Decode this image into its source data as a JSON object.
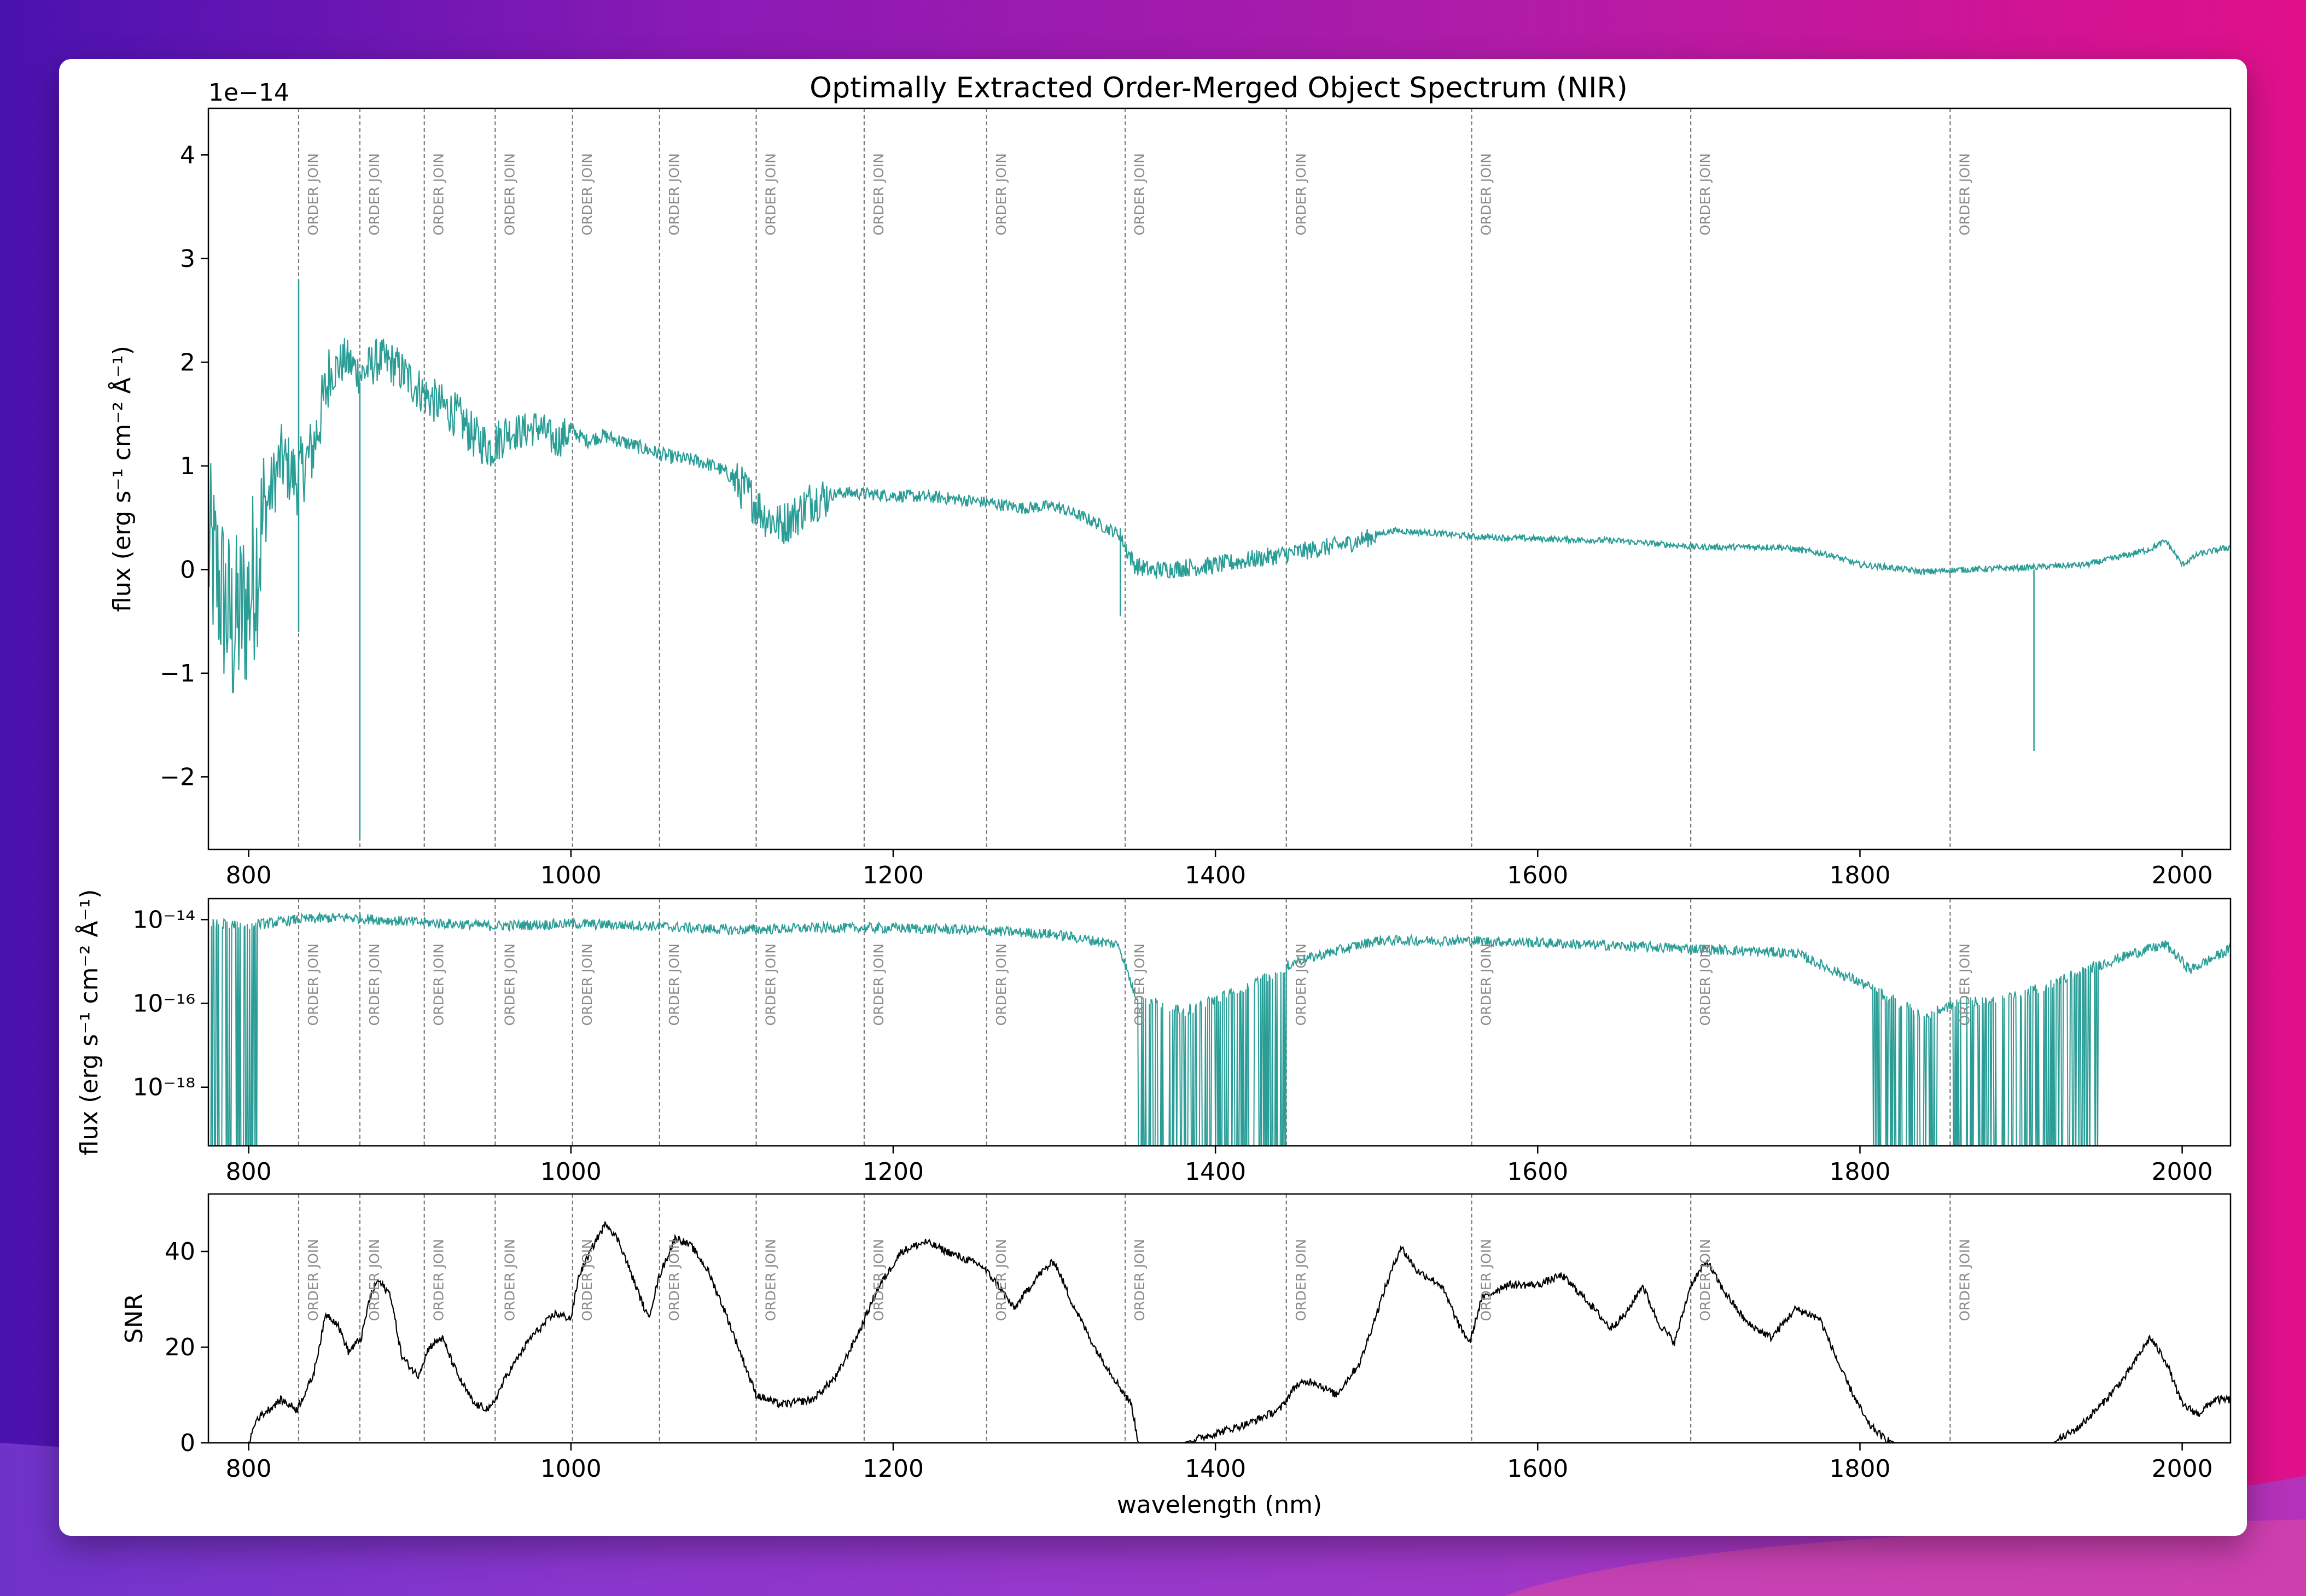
{
  "colors": {
    "spectrum": "#2a9d96",
    "snr": "#000000",
    "order_join": "#7a7a7a",
    "card": "#ffffff"
  },
  "chart_data": [
    {
      "id": "flux_linear",
      "type": "line",
      "title": "Optimally Extracted Order-Merged Object Spectrum (NIR)",
      "ylabel": "flux (erg s⁻¹ cm⁻² Å⁻¹)",
      "offset_text": "1e−14",
      "xlim": [
        775,
        2030
      ],
      "ylim": [
        -2.7,
        4.45
      ],
      "x_ticks": [
        800,
        1000,
        1200,
        1400,
        1600,
        1800,
        2000
      ],
      "y_ticks": [
        -2,
        -1,
        0,
        1,
        2,
        3,
        4
      ],
      "y_tick_labels": [
        "−2",
        "−1",
        "0",
        "1",
        "2",
        "3",
        "4"
      ],
      "series": [
        {
          "points": [
            [
              775,
              0.3
            ],
            [
              790,
              -0.5
            ],
            [
              800,
              -0.2
            ],
            [
              810,
              0.6
            ],
            [
              820,
              1.1
            ],
            [
              830,
              0.9
            ],
            [
              840,
              1.2
            ],
            [
              850,
              1.9
            ],
            [
              860,
              2.05
            ],
            [
              870,
              1.9
            ],
            [
              880,
              2.05
            ],
            [
              890,
              2.0
            ],
            [
              900,
              1.85
            ],
            [
              910,
              1.7
            ],
            [
              920,
              1.6
            ],
            [
              930,
              1.5
            ],
            [
              940,
              1.3
            ],
            [
              950,
              1.2
            ],
            [
              960,
              1.35
            ],
            [
              970,
              1.35
            ],
            [
              980,
              1.4
            ],
            [
              990,
              1.25
            ],
            [
              1000,
              1.35
            ],
            [
              1010,
              1.25
            ],
            [
              1020,
              1.3
            ],
            [
              1040,
              1.2
            ],
            [
              1060,
              1.1
            ],
            [
              1080,
              1.05
            ],
            [
              1090,
              1.0
            ],
            [
              1100,
              0.9
            ],
            [
              1110,
              0.75
            ],
            [
              1120,
              0.55
            ],
            [
              1130,
              0.45
            ],
            [
              1140,
              0.55
            ],
            [
              1150,
              0.7
            ],
            [
              1170,
              0.75
            ],
            [
              1200,
              0.72
            ],
            [
              1230,
              0.7
            ],
            [
              1260,
              0.65
            ],
            [
              1280,
              0.6
            ],
            [
              1300,
              0.62
            ],
            [
              1320,
              0.5
            ],
            [
              1340,
              0.35
            ],
            [
              1350,
              0.05
            ],
            [
              1360,
              0.0
            ],
            [
              1400,
              0.05
            ],
            [
              1440,
              0.15
            ],
            [
              1480,
              0.25
            ],
            [
              1510,
              0.38
            ],
            [
              1540,
              0.35
            ],
            [
              1560,
              0.32
            ],
            [
              1600,
              0.3
            ],
            [
              1650,
              0.28
            ],
            [
              1700,
              0.22
            ],
            [
              1750,
              0.22
            ],
            [
              1780,
              0.15
            ],
            [
              1800,
              0.05
            ],
            [
              1820,
              0.02
            ],
            [
              1840,
              -0.02
            ],
            [
              1860,
              0.0
            ],
            [
              1900,
              0.02
            ],
            [
              1940,
              0.05
            ],
            [
              1960,
              0.12
            ],
            [
              1980,
              0.2
            ],
            [
              1990,
              0.28
            ],
            [
              2000,
              0.05
            ],
            [
              2010,
              0.15
            ],
            [
              2030,
              0.22
            ]
          ],
          "features": [
            {
              "x": 831,
              "y_min": -0.6,
              "y_max": 2.8
            },
            {
              "x": 869,
              "y_min": -2.6,
              "y_max": 1.8
            },
            {
              "x": 1908,
              "y_min": -1.75,
              "y_max": 0.0
            },
            {
              "x": 1341,
              "y_min": -0.45,
              "y_max": 0.4
            }
          ]
        }
      ]
    },
    {
      "id": "flux_log",
      "type": "line",
      "ylabel": "flux (erg s⁻¹ cm⁻² Å⁻¹)",
      "y_scale": "log",
      "xlim": [
        775,
        2030
      ],
      "ylim_exp": [
        -19.4,
        -13.5
      ],
      "x_ticks": [
        800,
        1000,
        1200,
        1400,
        1600,
        1800,
        2000
      ],
      "y_ticks": [
        -14,
        -16,
        -18
      ],
      "y_tick_labels": [
        "10⁻¹⁴",
        "10⁻¹⁶",
        "10⁻¹⁸"
      ],
      "series": [
        {
          "points_log10": [
            [
              810,
              -14.1
            ],
            [
              830,
              -14.0
            ],
            [
              860,
              -13.95
            ],
            [
              900,
              -14.05
            ],
            [
              950,
              -14.15
            ],
            [
              1000,
              -14.1
            ],
            [
              1050,
              -14.15
            ],
            [
              1100,
              -14.25
            ],
            [
              1150,
              -14.2
            ],
            [
              1200,
              -14.2
            ],
            [
              1250,
              -14.25
            ],
            [
              1300,
              -14.35
            ],
            [
              1340,
              -14.6
            ],
            [
              1350,
              -15.8
            ],
            [
              1380,
              -16.2
            ],
            [
              1420,
              -15.6
            ],
            [
              1450,
              -15.0
            ],
            [
              1500,
              -14.5
            ],
            [
              1550,
              -14.5
            ],
            [
              1600,
              -14.55
            ],
            [
              1700,
              -14.7
            ],
            [
              1760,
              -14.8
            ],
            [
              1800,
              -15.5
            ],
            [
              1840,
              -16.3
            ],
            [
              1860,
              -16.0
            ],
            [
              1900,
              -15.8
            ],
            [
              1940,
              -15.2
            ],
            [
              1970,
              -14.8
            ],
            [
              1990,
              -14.6
            ],
            [
              2005,
              -15.2
            ],
            [
              2030,
              -14.7
            ]
          ],
          "dropout_ranges": [
            [
              775,
              805
            ],
            [
              1352,
              1445
            ],
            [
              1808,
              1848
            ],
            [
              1858,
              1948
            ]
          ]
        }
      ]
    },
    {
      "id": "snr",
      "type": "line",
      "ylabel": "SNR",
      "xlabel": "wavelength (nm)",
      "xlim": [
        775,
        2030
      ],
      "ylim": [
        0,
        52
      ],
      "x_ticks": [
        800,
        1000,
        1200,
        1400,
        1600,
        1800,
        2000
      ],
      "y_ticks": [
        0,
        20,
        40
      ],
      "y_tick_labels": [
        "0",
        "20",
        "40"
      ],
      "series": [
        {
          "points": [
            [
              800,
              0
            ],
            [
              805,
              5
            ],
            [
              820,
              9
            ],
            [
              830,
              7
            ],
            [
              840,
              14
            ],
            [
              848,
              27
            ],
            [
              855,
              25
            ],
            [
              862,
              19
            ],
            [
              870,
              22
            ],
            [
              875,
              30
            ],
            [
              880,
              34
            ],
            [
              888,
              31
            ],
            [
              895,
              18
            ],
            [
              905,
              14
            ],
            [
              912,
              20
            ],
            [
              920,
              22
            ],
            [
              930,
              14
            ],
            [
              940,
              8
            ],
            [
              950,
              7
            ],
            [
              960,
              14
            ],
            [
              975,
              22
            ],
            [
              990,
              27
            ],
            [
              1000,
              26
            ],
            [
              1005,
              35
            ],
            [
              1015,
              42
            ],
            [
              1022,
              46
            ],
            [
              1030,
              42
            ],
            [
              1040,
              33
            ],
            [
              1048,
              26
            ],
            [
              1055,
              35
            ],
            [
              1065,
              43
            ],
            [
              1075,
              41
            ],
            [
              1085,
              36
            ],
            [
              1095,
              28
            ],
            [
              1105,
              19
            ],
            [
              1115,
              10
            ],
            [
              1130,
              8
            ],
            [
              1150,
              9
            ],
            [
              1165,
              14
            ],
            [
              1180,
              24
            ],
            [
              1190,
              32
            ],
            [
              1205,
              40
            ],
            [
              1220,
              42
            ],
            [
              1240,
              39
            ],
            [
              1255,
              37
            ],
            [
              1265,
              33
            ],
            [
              1275,
              28
            ],
            [
              1290,
              35
            ],
            [
              1300,
              38
            ],
            [
              1310,
              30
            ],
            [
              1325,
              20
            ],
            [
              1340,
              12
            ],
            [
              1348,
              8
            ],
            [
              1352,
              0
            ],
            [
              1380,
              0
            ],
            [
              1420,
              4
            ],
            [
              1440,
              7
            ],
            [
              1450,
              12
            ],
            [
              1460,
              13
            ],
            [
              1475,
              10
            ],
            [
              1490,
              17
            ],
            [
              1505,
              32
            ],
            [
              1515,
              41
            ],
            [
              1525,
              36
            ],
            [
              1540,
              33
            ],
            [
              1552,
              24
            ],
            [
              1558,
              21
            ],
            [
              1565,
              30
            ],
            [
              1580,
              33
            ],
            [
              1600,
              33
            ],
            [
              1615,
              35
            ],
            [
              1630,
              30
            ],
            [
              1645,
              24
            ],
            [
              1655,
              27
            ],
            [
              1665,
              33
            ],
            [
              1675,
              25
            ],
            [
              1685,
              21
            ],
            [
              1695,
              33
            ],
            [
              1705,
              38
            ],
            [
              1715,
              32
            ],
            [
              1730,
              25
            ],
            [
              1745,
              22
            ],
            [
              1760,
              28
            ],
            [
              1775,
              26
            ],
            [
              1790,
              14
            ],
            [
              1805,
              4
            ],
            [
              1815,
              1
            ],
            [
              1822,
              0
            ],
            [
              1920,
              0
            ],
            [
              1935,
              3
            ],
            [
              1950,
              8
            ],
            [
              1965,
              14
            ],
            [
              1980,
              22
            ],
            [
              1990,
              17
            ],
            [
              2000,
              8
            ],
            [
              2010,
              6
            ],
            [
              2020,
              9
            ],
            [
              2030,
              9
            ]
          ]
        }
      ]
    }
  ],
  "order_joins": {
    "label": "ORDER JOIN",
    "x": [
      831,
      869,
      909,
      953,
      1001,
      1055,
      1115,
      1182,
      1258,
      1344,
      1444,
      1559,
      1695,
      1856
    ]
  }
}
